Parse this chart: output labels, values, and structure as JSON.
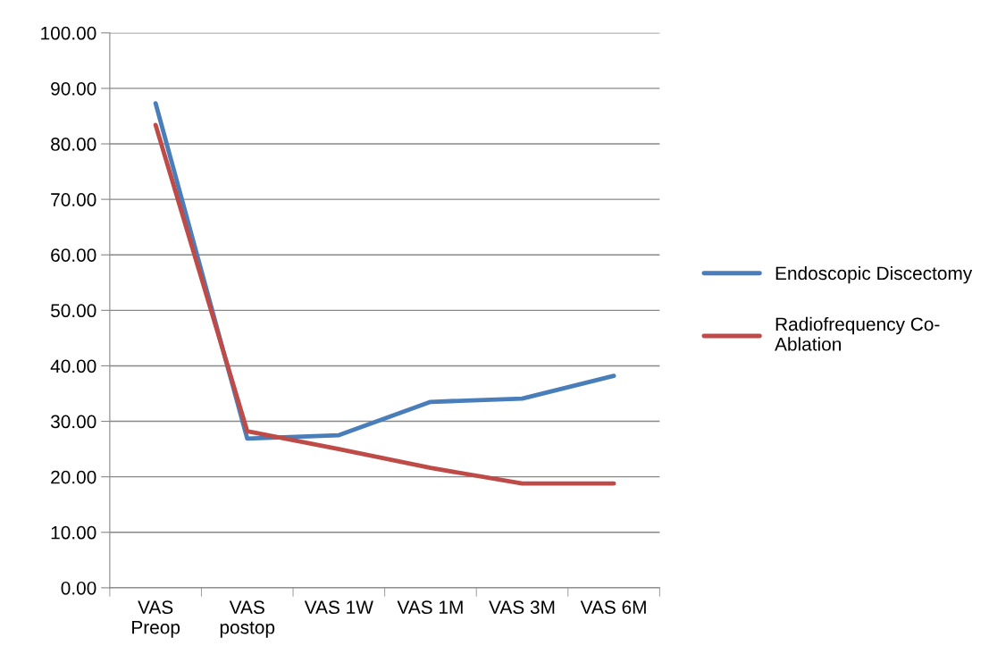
{
  "chart_data": {
    "type": "line",
    "categories": [
      "VAS\nPreop",
      "VAS\npostop",
      "VAS 1W",
      "VAS 1M",
      "VAS 3M",
      "VAS 6M"
    ],
    "series": [
      {
        "name": "Endoscopic Discectomy",
        "color": "#4a7ebb",
        "values": [
          87.3,
          26.9,
          27.5,
          33.5,
          34.1,
          38.2
        ]
      },
      {
        "name": "Radiofrequency Co-\nAblation",
        "color": "#be4b48",
        "values": [
          83.4,
          28.2,
          25.0,
          21.6,
          18.8,
          18.8
        ]
      }
    ],
    "ylim": [
      0,
      100
    ],
    "yticks": [
      {
        "value": 0,
        "label": "0.00"
      },
      {
        "value": 10,
        "label": "10.00"
      },
      {
        "value": 20,
        "label": "20.00"
      },
      {
        "value": 30,
        "label": "30.00"
      },
      {
        "value": 40,
        "label": "40.00"
      },
      {
        "value": 50,
        "label": "50.00"
      },
      {
        "value": 60,
        "label": "60.00"
      },
      {
        "value": 70,
        "label": "70.00"
      },
      {
        "value": 80,
        "label": "80.00"
      },
      {
        "value": 90,
        "label": "90.00"
      },
      {
        "value": 100,
        "label": "100.00"
      }
    ],
    "grid": "y",
    "legend": "right",
    "marker": "none",
    "line_style": "solid"
  }
}
